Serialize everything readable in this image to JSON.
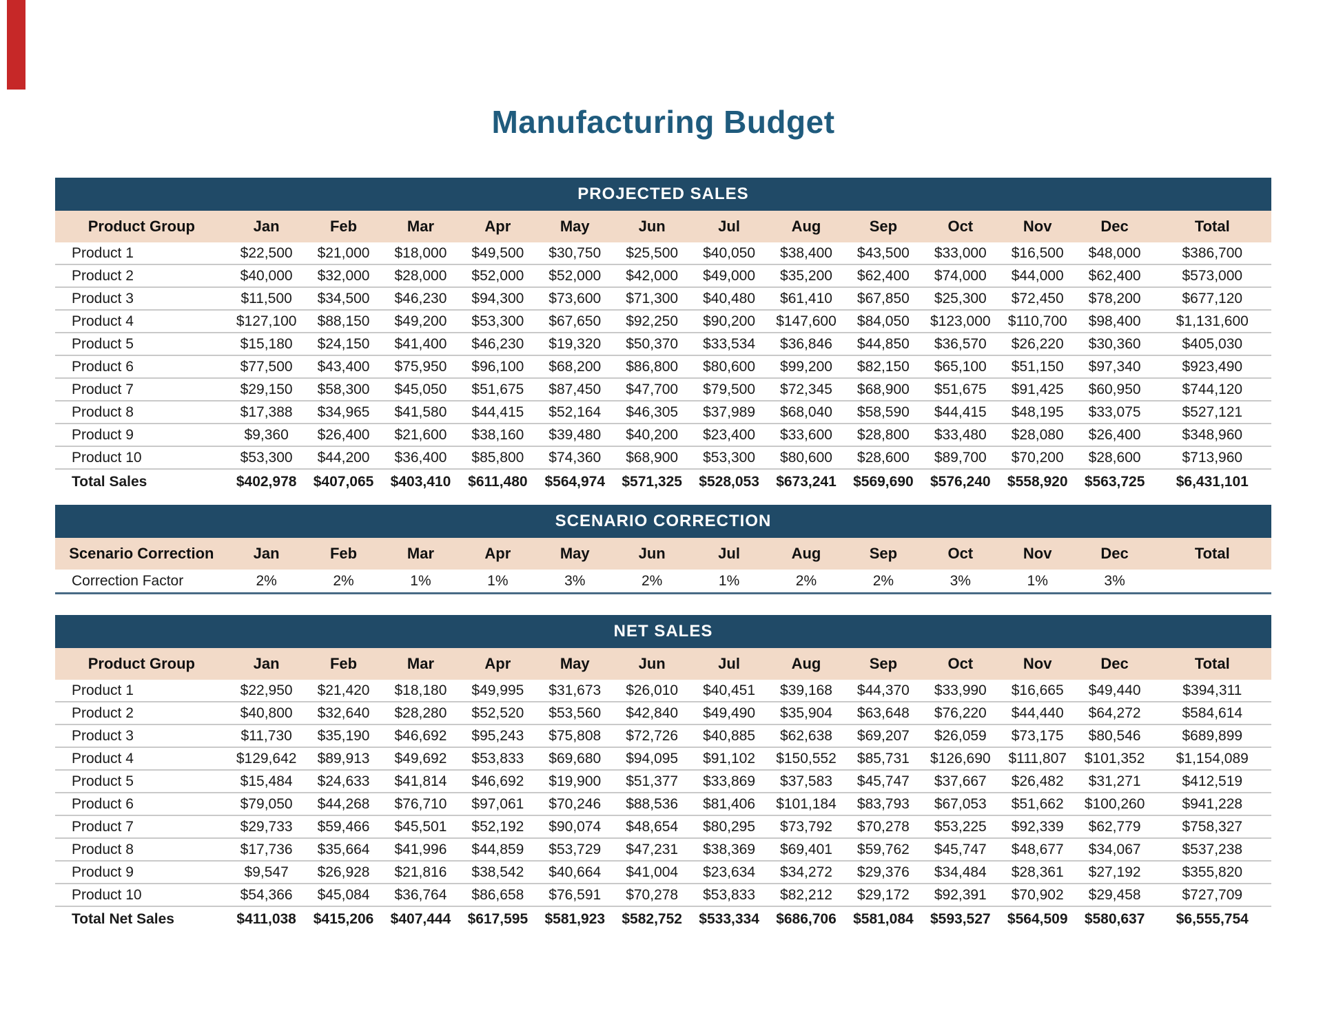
{
  "page": {
    "title": "Manufacturing Budget",
    "colors": {
      "band_navy": "#204A67",
      "header_peach": "#F2DAC8",
      "title_blue": "#1F5B7D",
      "accent_red": "#C62828",
      "gridline_gray": "#C9C9C9"
    }
  },
  "columns": [
    "Jan",
    "Feb",
    "Mar",
    "Apr",
    "May",
    "Jun",
    "Jul",
    "Aug",
    "Sep",
    "Oct",
    "Nov",
    "Dec",
    "Total"
  ],
  "tables": {
    "projected_sales": {
      "band": "PROJECTED SALES",
      "first_column_header": "Product Group",
      "rows": [
        {
          "label": "Product 1",
          "values": [
            "$22,500",
            "$21,000",
            "$18,000",
            "$49,500",
            "$30,750",
            "$25,500",
            "$40,050",
            "$38,400",
            "$43,500",
            "$33,000",
            "$16,500",
            "$48,000",
            "$386,700"
          ]
        },
        {
          "label": "Product 2",
          "values": [
            "$40,000",
            "$32,000",
            "$28,000",
            "$52,000",
            "$52,000",
            "$42,000",
            "$49,000",
            "$35,200",
            "$62,400",
            "$74,000",
            "$44,000",
            "$62,400",
            "$573,000"
          ]
        },
        {
          "label": "Product 3",
          "values": [
            "$11,500",
            "$34,500",
            "$46,230",
            "$94,300",
            "$73,600",
            "$71,300",
            "$40,480",
            "$61,410",
            "$67,850",
            "$25,300",
            "$72,450",
            "$78,200",
            "$677,120"
          ]
        },
        {
          "label": "Product 4",
          "values": [
            "$127,100",
            "$88,150",
            "$49,200",
            "$53,300",
            "$67,650",
            "$92,250",
            "$90,200",
            "$147,600",
            "$84,050",
            "$123,000",
            "$110,700",
            "$98,400",
            "$1,131,600"
          ]
        },
        {
          "label": "Product 5",
          "values": [
            "$15,180",
            "$24,150",
            "$41,400",
            "$46,230",
            "$19,320",
            "$50,370",
            "$33,534",
            "$36,846",
            "$44,850",
            "$36,570",
            "$26,220",
            "$30,360",
            "$405,030"
          ]
        },
        {
          "label": "Product 6",
          "values": [
            "$77,500",
            "$43,400",
            "$75,950",
            "$96,100",
            "$68,200",
            "$86,800",
            "$80,600",
            "$99,200",
            "$82,150",
            "$65,100",
            "$51,150",
            "$97,340",
            "$923,490"
          ]
        },
        {
          "label": "Product 7",
          "values": [
            "$29,150",
            "$58,300",
            "$45,050",
            "$51,675",
            "$87,450",
            "$47,700",
            "$79,500",
            "$72,345",
            "$68,900",
            "$51,675",
            "$91,425",
            "$60,950",
            "$744,120"
          ]
        },
        {
          "label": "Product 8",
          "values": [
            "$17,388",
            "$34,965",
            "$41,580",
            "$44,415",
            "$52,164",
            "$46,305",
            "$37,989",
            "$68,040",
            "$58,590",
            "$44,415",
            "$48,195",
            "$33,075",
            "$527,121"
          ]
        },
        {
          "label": "Product 9",
          "values": [
            "$9,360",
            "$26,400",
            "$21,600",
            "$38,160",
            "$39,480",
            "$40,200",
            "$23,400",
            "$33,600",
            "$28,800",
            "$33,480",
            "$28,080",
            "$26,400",
            "$348,960"
          ]
        },
        {
          "label": "Product 10",
          "values": [
            "$53,300",
            "$44,200",
            "$36,400",
            "$85,800",
            "$74,360",
            "$68,900",
            "$53,300",
            "$80,600",
            "$28,600",
            "$89,700",
            "$70,200",
            "$28,600",
            "$713,960"
          ]
        }
      ],
      "total": {
        "label": "Total Sales",
        "values": [
          "$402,978",
          "$407,065",
          "$403,410",
          "$611,480",
          "$564,974",
          "$571,325",
          "$528,053",
          "$673,241",
          "$569,690",
          "$576,240",
          "$558,920",
          "$563,725",
          "$6,431,101"
        ]
      }
    },
    "scenario_correction": {
      "band": "SCENARIO CORRECTION",
      "first_column_header": "Scenario Correction",
      "rows": [
        {
          "label": "Correction Factor",
          "values": [
            "2%",
            "2%",
            "1%",
            "1%",
            "3%",
            "2%",
            "1%",
            "2%",
            "2%",
            "3%",
            "1%",
            "3%",
            ""
          ]
        }
      ]
    },
    "net_sales": {
      "band": "NET SALES",
      "first_column_header": "Product Group",
      "rows": [
        {
          "label": "Product 1",
          "values": [
            "$22,950",
            "$21,420",
            "$18,180",
            "$49,995",
            "$31,673",
            "$26,010",
            "$40,451",
            "$39,168",
            "$44,370",
            "$33,990",
            "$16,665",
            "$49,440",
            "$394,311"
          ]
        },
        {
          "label": "Product 2",
          "values": [
            "$40,800",
            "$32,640",
            "$28,280",
            "$52,520",
            "$53,560",
            "$42,840",
            "$49,490",
            "$35,904",
            "$63,648",
            "$76,220",
            "$44,440",
            "$64,272",
            "$584,614"
          ]
        },
        {
          "label": "Product 3",
          "values": [
            "$11,730",
            "$35,190",
            "$46,692",
            "$95,243",
            "$75,808",
            "$72,726",
            "$40,885",
            "$62,638",
            "$69,207",
            "$26,059",
            "$73,175",
            "$80,546",
            "$689,899"
          ]
        },
        {
          "label": "Product 4",
          "values": [
            "$129,642",
            "$89,913",
            "$49,692",
            "$53,833",
            "$69,680",
            "$94,095",
            "$91,102",
            "$150,552",
            "$85,731",
            "$126,690",
            "$111,807",
            "$101,352",
            "$1,154,089"
          ]
        },
        {
          "label": "Product 5",
          "values": [
            "$15,484",
            "$24,633",
            "$41,814",
            "$46,692",
            "$19,900",
            "$51,377",
            "$33,869",
            "$37,583",
            "$45,747",
            "$37,667",
            "$26,482",
            "$31,271",
            "$412,519"
          ]
        },
        {
          "label": "Product 6",
          "values": [
            "$79,050",
            "$44,268",
            "$76,710",
            "$97,061",
            "$70,246",
            "$88,536",
            "$81,406",
            "$101,184",
            "$83,793",
            "$67,053",
            "$51,662",
            "$100,260",
            "$941,228"
          ]
        },
        {
          "label": "Product 7",
          "values": [
            "$29,733",
            "$59,466",
            "$45,501",
            "$52,192",
            "$90,074",
            "$48,654",
            "$80,295",
            "$73,792",
            "$70,278",
            "$53,225",
            "$92,339",
            "$62,779",
            "$758,327"
          ]
        },
        {
          "label": "Product 8",
          "values": [
            "$17,736",
            "$35,664",
            "$41,996",
            "$44,859",
            "$53,729",
            "$47,231",
            "$38,369",
            "$69,401",
            "$59,762",
            "$45,747",
            "$48,677",
            "$34,067",
            "$537,238"
          ]
        },
        {
          "label": "Product 9",
          "values": [
            "$9,547",
            "$26,928",
            "$21,816",
            "$38,542",
            "$40,664",
            "$41,004",
            "$23,634",
            "$34,272",
            "$29,376",
            "$34,484",
            "$28,361",
            "$27,192",
            "$355,820"
          ]
        },
        {
          "label": "Product 10",
          "values": [
            "$54,366",
            "$45,084",
            "$36,764",
            "$86,658",
            "$76,591",
            "$70,278",
            "$53,833",
            "$82,212",
            "$29,172",
            "$92,391",
            "$70,902",
            "$29,458",
            "$727,709"
          ]
        }
      ],
      "total": {
        "label": "Total Net Sales",
        "values": [
          "$411,038",
          "$415,206",
          "$407,444",
          "$617,595",
          "$581,923",
          "$582,752",
          "$533,334",
          "$686,706",
          "$581,084",
          "$593,527",
          "$564,509",
          "$580,637",
          "$6,555,754"
        ]
      }
    }
  }
}
